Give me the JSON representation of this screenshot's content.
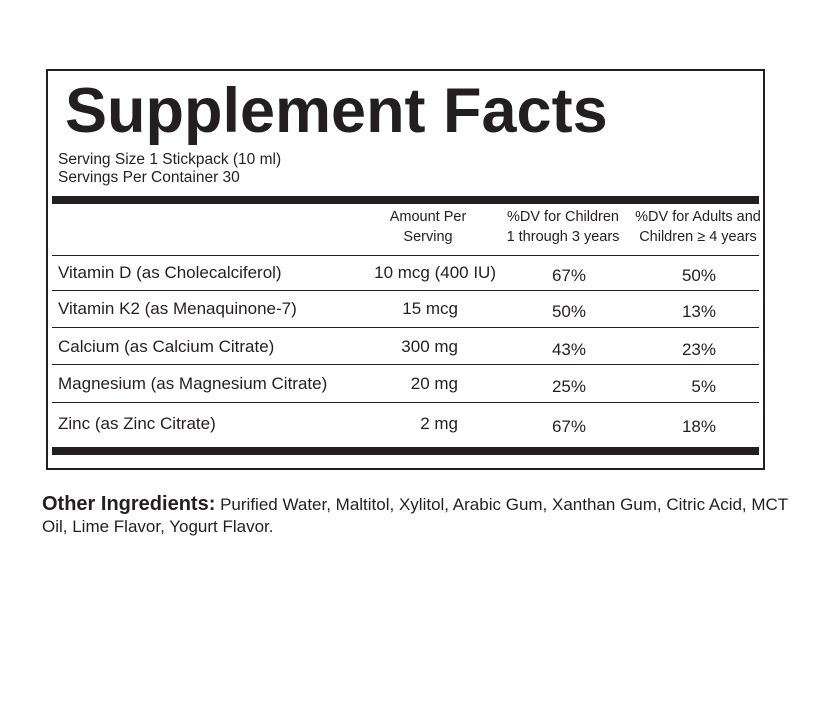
{
  "panel": {
    "title": "Supplement Facts",
    "serving_size": "Serving Size 1 Stickpack (10 ml)",
    "servings_per_container": "Servings Per Container 30"
  },
  "table": {
    "headers": {
      "amount": [
        "Amount Per",
        "Serving"
      ],
      "dv_children": [
        "%DV for Children",
        "1 through 3 years"
      ],
      "dv_adults": [
        "%DV for Adults and",
        "Children ≥ 4 years"
      ]
    },
    "rows": [
      {
        "name": "Vitamin D (as Cholecalciferol)",
        "amount": "10 mcg  (400 IU)",
        "dv_children": "67%",
        "dv_adults": "50%"
      },
      {
        "name": "Vitamin K2 (as Menaquinone-7)",
        "amount": "15 mcg",
        "dv_children": "50%",
        "dv_adults": "13%"
      },
      {
        "name": "Calcium (as Calcium Citrate)",
        "amount": "300 mg",
        "dv_children": "43%",
        "dv_adults": "23%"
      },
      {
        "name": "Magnesium (as Magnesium Citrate)",
        "amount": "20 mg",
        "dv_children": "25%",
        "dv_adults": "5%"
      },
      {
        "name": "Zinc (as Zinc Citrate)",
        "amount": "2 mg",
        "dv_children": "67%",
        "dv_adults": "18%"
      }
    ]
  },
  "ingredients": {
    "label": "Other Ingredients:",
    "text": " Purified Water, Maltitol, Xylitol, Arabic Gum, Xanthan Gum, Citric Acid, MCT Oil, Lime Flavor, Yogurt Flavor."
  }
}
